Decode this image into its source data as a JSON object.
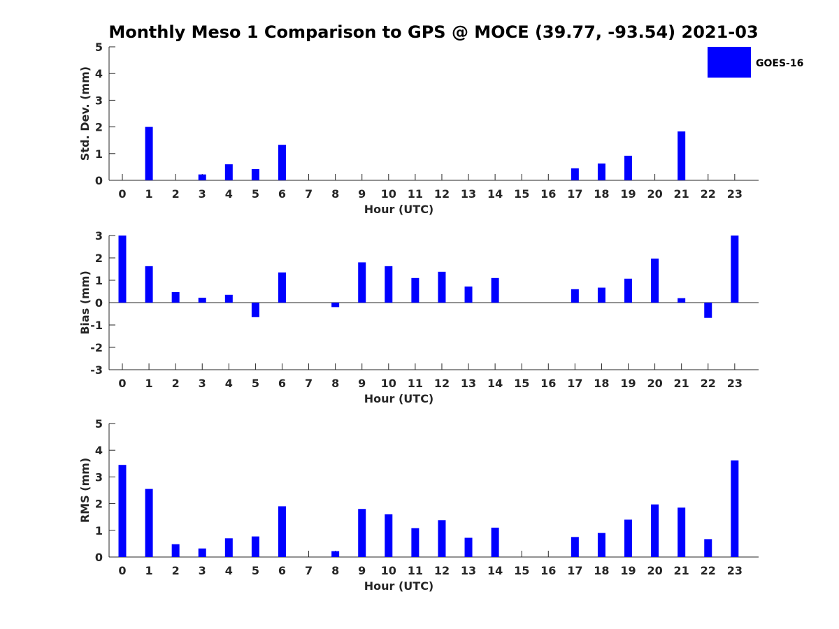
{
  "figure_title": "Monthly Meso 1 Comparison to GPS @ MOCE (39.77, -93.54) 2021-03",
  "legend": {
    "label": "GOES-16",
    "color": "#0000ff"
  },
  "chart_data": [
    {
      "type": "bar",
      "xlabel": "Hour (UTC)",
      "ylabel": "Std. Dev. (mm)",
      "ylim": [
        0,
        5
      ],
      "yticks": [
        0,
        1,
        2,
        3,
        4,
        5
      ],
      "categories": [
        0,
        1,
        2,
        3,
        4,
        5,
        6,
        7,
        8,
        9,
        10,
        11,
        12,
        13,
        14,
        15,
        16,
        17,
        18,
        19,
        20,
        21,
        22,
        23
      ],
      "series": [
        {
          "name": "GOES-16",
          "color": "#0000ff",
          "values": [
            0,
            2.0,
            0,
            0.22,
            0.6,
            0.42,
            1.33,
            0,
            0,
            0,
            0,
            0,
            0,
            0,
            0,
            0,
            0,
            0.45,
            0.63,
            0.92,
            0,
            1.83,
            0,
            0
          ]
        }
      ],
      "grid": false,
      "legend_position": "top-right-outside"
    },
    {
      "type": "bar",
      "xlabel": "Hour (UTC)",
      "ylabel": "Bias (mm)",
      "ylim": [
        -3,
        3
      ],
      "yticks": [
        -3,
        -2,
        -1,
        0,
        1,
        2,
        3
      ],
      "categories": [
        0,
        1,
        2,
        3,
        4,
        5,
        6,
        7,
        8,
        9,
        10,
        11,
        12,
        13,
        14,
        15,
        16,
        17,
        18,
        19,
        20,
        21,
        22,
        23
      ],
      "series": [
        {
          "name": "GOES-16",
          "color": "#0000ff",
          "values": [
            3.0,
            1.63,
            0.47,
            0.22,
            0.35,
            -0.65,
            1.35,
            0,
            -0.2,
            1.8,
            1.63,
            1.1,
            1.38,
            0.72,
            1.1,
            0,
            0,
            0.6,
            0.67,
            1.07,
            1.97,
            0.2,
            -0.68,
            3.0
          ]
        }
      ],
      "grid": false
    },
    {
      "type": "bar",
      "xlabel": "Hour (UTC)",
      "ylabel": "RMS (mm)",
      "ylim": [
        0,
        5
      ],
      "yticks": [
        0,
        1,
        2,
        3,
        4,
        5
      ],
      "categories": [
        0,
        1,
        2,
        3,
        4,
        5,
        6,
        7,
        8,
        9,
        10,
        11,
        12,
        13,
        14,
        15,
        16,
        17,
        18,
        19,
        20,
        21,
        22,
        23
      ],
      "series": [
        {
          "name": "GOES-16",
          "color": "#0000ff",
          "values": [
            3.45,
            2.55,
            0.48,
            0.32,
            0.7,
            0.77,
            1.9,
            0,
            0.22,
            1.8,
            1.6,
            1.08,
            1.38,
            0.72,
            1.1,
            0,
            0,
            0.75,
            0.9,
            1.4,
            1.97,
            1.85,
            0.67,
            3.62
          ]
        }
      ],
      "grid": false
    }
  ]
}
